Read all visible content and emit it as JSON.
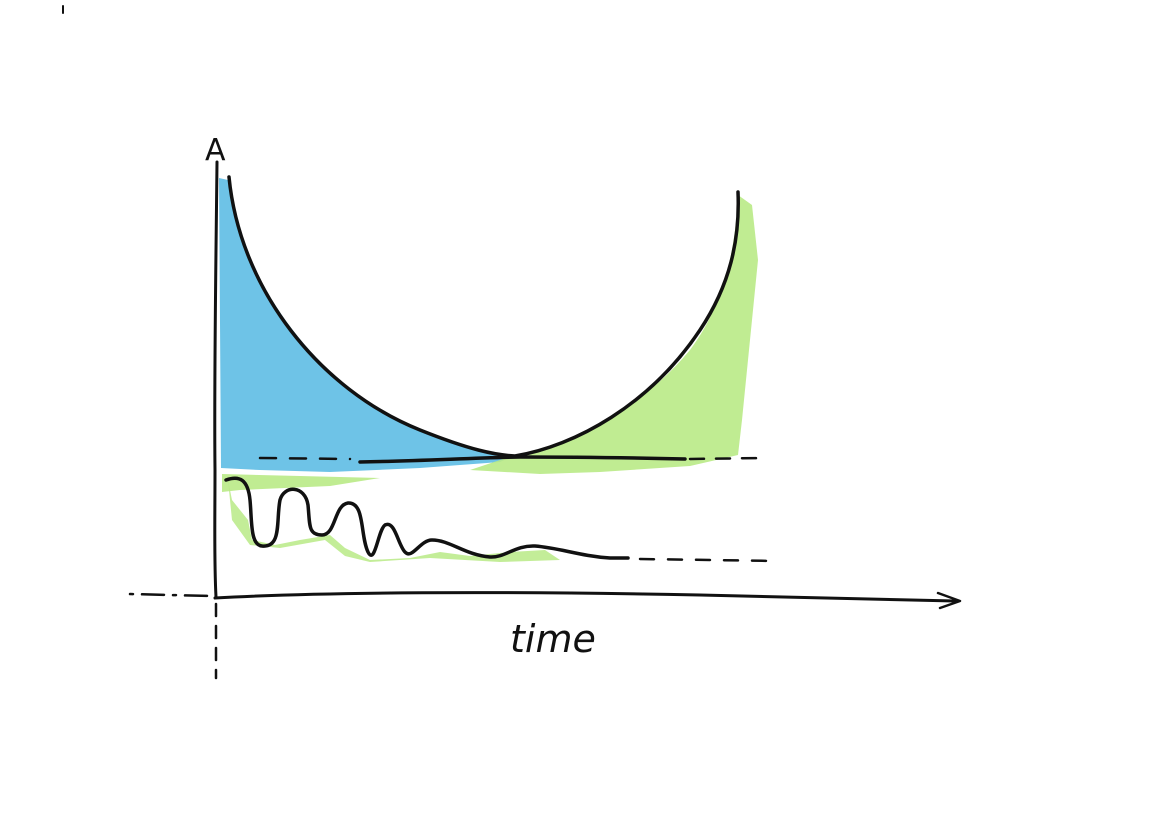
{
  "diagram": {
    "y_axis_label": "A",
    "x_axis_label": "time",
    "colors": {
      "ink": "#111111",
      "blue_fill": "#55b8e3",
      "green_fill": "#b9ea86",
      "paper": "#ffffff"
    }
  }
}
